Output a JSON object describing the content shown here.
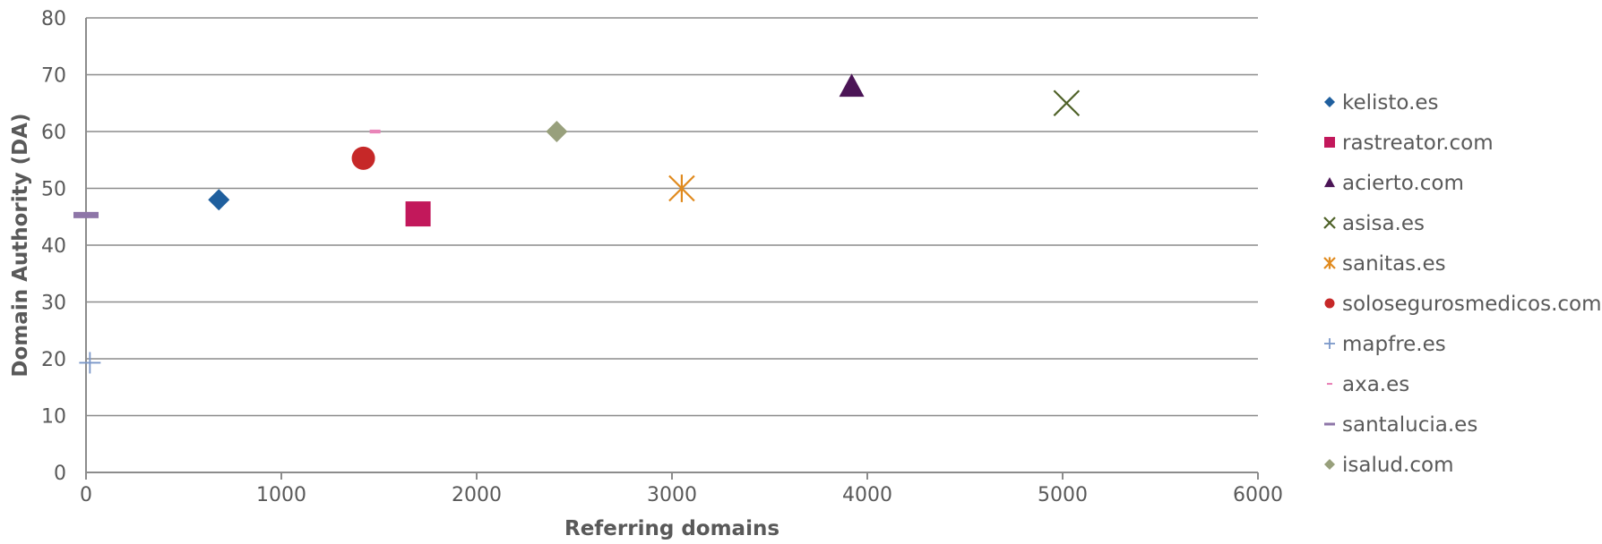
{
  "chart_data": {
    "type": "scatter",
    "title": "",
    "xlabel": "Referring domains",
    "ylabel": "Domain Authority (DA)",
    "xlim": [
      0,
      6000
    ],
    "ylim": [
      0,
      80
    ],
    "x_ticks": [
      0,
      1000,
      2000,
      3000,
      4000,
      5000,
      6000
    ],
    "y_ticks": [
      0,
      10,
      20,
      30,
      40,
      50,
      60,
      70,
      80
    ],
    "grid": "horizontal",
    "legend_position": "right",
    "series": [
      {
        "name": "kelisto.es",
        "x": 680,
        "y": 48,
        "marker": "diamond",
        "color": "#1f5f9e"
      },
      {
        "name": "rastreator.com",
        "x": 1700,
        "y": 45.5,
        "marker": "square",
        "color": "#c2185b"
      },
      {
        "name": "acierto.com",
        "x": 3920,
        "y": 68,
        "marker": "triangle",
        "color": "#4b1556"
      },
      {
        "name": "asisa.es",
        "x": 5020,
        "y": 65,
        "marker": "x",
        "color": "#4f6228"
      },
      {
        "name": "sanitas.es",
        "x": 3050,
        "y": 50,
        "marker": "asterisk",
        "color": "#e08a1e"
      },
      {
        "name": "solosegurosmedicos.com",
        "x": 1420,
        "y": 55.3,
        "marker": "circle",
        "color": "#c62828"
      },
      {
        "name": "mapfre.es",
        "x": 20,
        "y": 19.3,
        "marker": "plus",
        "color": "#7a97c9"
      },
      {
        "name": "axa.es",
        "x": 1480,
        "y": 60,
        "marker": "dash-small",
        "color": "#e984b8"
      },
      {
        "name": "santalucia.es",
        "x": 0,
        "y": 45.3,
        "marker": "dash",
        "color": "#8e76a8"
      },
      {
        "name": "isalud.com",
        "x": 2410,
        "y": 60,
        "marker": "diamond",
        "color": "#98a07c"
      }
    ]
  }
}
